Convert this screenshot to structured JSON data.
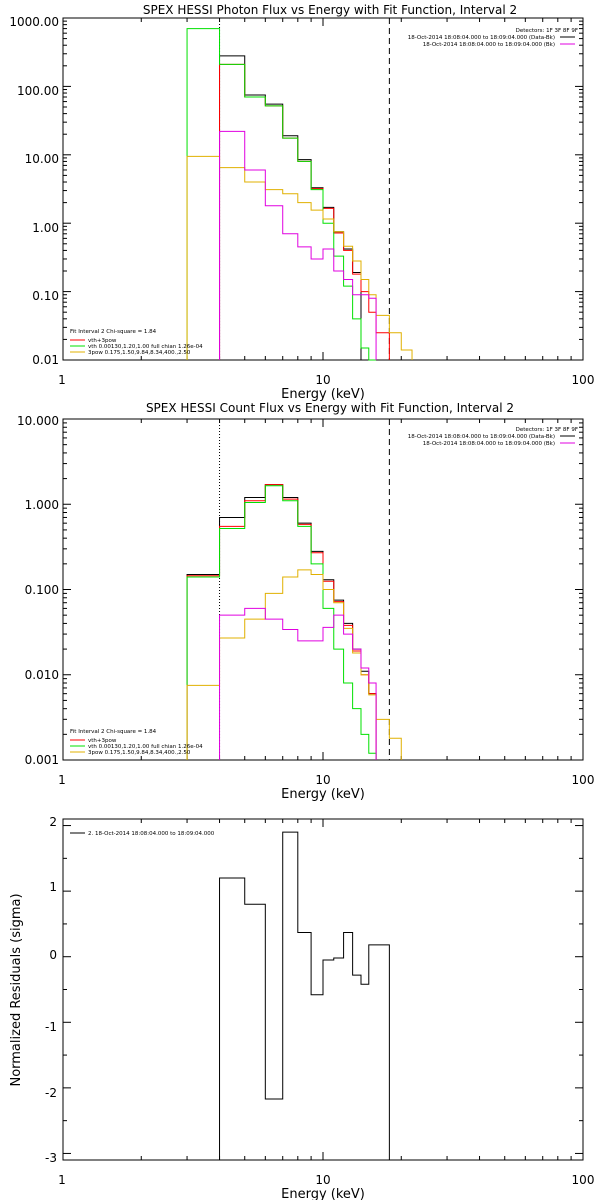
{
  "colors": {
    "black": "#000000",
    "red": "#ff0000",
    "green": "#00e000",
    "yellow": "#e0b000",
    "magenta": "#e000e0",
    "background": "#ffffff"
  },
  "chart_data": [
    {
      "type": "line",
      "title": "SPEX HESSI Photon Flux vs Energy with Fit Function, Interval 2",
      "xlabel": "Energy (keV)",
      "ylabel": "",
      "xscale": "log",
      "yscale": "log",
      "xlim": [
        1,
        100
      ],
      "ylim": [
        0.01,
        1000
      ],
      "xtick_labels": [
        "1",
        "10",
        "100"
      ],
      "ytick_labels": [
        "0.01",
        "0.10",
        "1.00",
        "10.00",
        "100.00",
        "1000.00"
      ],
      "vlines": {
        "dotted": 4.0,
        "dashed": 18.0
      },
      "info_text": [
        "Detectors: 1F 3F 8F 9F",
        "18-Oct-2014 18:08:04.000 to 18:09:04.000 (Data-Bk)",
        "18-Oct-2014 18:08:04.000 to 18:09:04.000 (Bk)"
      ],
      "fit_legend": {
        "header": "Fit Interval 2   Chi-square = 1.84",
        "entries": [
          "vth+3pow",
          "vth 0.00130,1.20,1.00  full chian 1.26e-04",
          "3pow 0.175,1.50,9.84,8.34,400.,2.50"
        ]
      },
      "bin_edges": [
        3.0,
        4.0,
        5.0,
        6.0,
        7.0,
        8.0,
        9.0,
        10.0,
        11.0,
        12.0,
        13.0,
        14.0,
        15.0,
        16.0,
        18.0,
        20.0,
        22.0
      ],
      "series": [
        {
          "color": "black",
          "values": [
            null,
            280,
            75,
            55,
            19,
            8.5,
            3.3,
            1.7,
            0.75,
            0.42,
            0.19,
            null,
            null,
            null,
            null,
            null
          ]
        },
        {
          "color": "red",
          "values": [
            null,
            210,
            70,
            52,
            17.5,
            8,
            3.2,
            1.65,
            0.72,
            0.4,
            0.18,
            0.1,
            0.05,
            0.025,
            null,
            null
          ]
        },
        {
          "color": "green",
          "values": [
            700,
            210,
            70,
            52,
            17.5,
            8,
            3.1,
            1.0,
            0.33,
            0.12,
            0.04,
            0.015,
            0.006,
            null,
            null,
            null
          ]
        },
        {
          "color": "yellow",
          "values": [
            9.5,
            6.5,
            4.0,
            3.1,
            2.7,
            2.0,
            1.55,
            1.15,
            0.75,
            0.46,
            0.28,
            0.15,
            0.09,
            0.045,
            0.025,
            0.014
          ]
        },
        {
          "color": "magenta",
          "values": [
            null,
            22,
            6.0,
            1.8,
            0.7,
            0.45,
            0.3,
            0.42,
            0.2,
            0.15,
            0.09,
            0.09,
            0.08,
            null,
            null,
            null
          ]
        }
      ]
    },
    {
      "type": "line",
      "title": "SPEX HESSI Count Flux vs Energy with Fit Function, Interval 2",
      "xlabel": "Energy (keV)",
      "ylabel": "",
      "xscale": "log",
      "yscale": "log",
      "xlim": [
        1,
        100
      ],
      "ylim": [
        0.001,
        10
      ],
      "xtick_labels": [
        "1",
        "10",
        "100"
      ],
      "ytick_labels": [
        "0.001",
        "0.010",
        "0.100",
        "1.000",
        "10.000"
      ],
      "vlines": {
        "dotted": 4.0,
        "dashed": 18.0
      },
      "info_text": [
        "Detectors: 1F 3F 8F 9F",
        "18-Oct-2014 18:08:04.000 to 18:09:04.000 (Data-Bk)",
        "18-Oct-2014 18:08:04.000 to 18:09:04.000 (Bk)"
      ],
      "fit_legend": {
        "header": "Fit Interval 2   Chi-square = 1.84",
        "entries": [
          "vth+3pow",
          "vth 0.00130,1.20,1.00  full chian 1.26e-04",
          "3pow 0.175,1.50,9.84,8.34,400.,2.50"
        ]
      },
      "bin_edges": [
        3.0,
        4.0,
        5.0,
        6.0,
        7.0,
        8.0,
        9.0,
        10.0,
        11.0,
        12.0,
        13.0,
        14.0,
        15.0,
        16.0,
        18.0,
        20.0,
        22.0
      ],
      "series": [
        {
          "color": "black",
          "values": [
            0.15,
            0.7,
            1.2,
            1.7,
            1.2,
            0.6,
            0.28,
            0.13,
            0.075,
            0.04,
            0.02,
            0.011,
            0.006,
            null,
            null,
            null
          ]
        },
        {
          "color": "red",
          "values": [
            0.145,
            0.55,
            1.1,
            1.7,
            1.15,
            0.58,
            0.27,
            0.125,
            0.072,
            0.038,
            0.019,
            0.01,
            0.006,
            null,
            null,
            null
          ]
        },
        {
          "color": "green",
          "values": [
            0.14,
            0.52,
            1.05,
            1.65,
            1.1,
            0.55,
            0.2,
            0.06,
            0.02,
            0.008,
            0.004,
            0.002,
            0.0012,
            null,
            null,
            null
          ]
        },
        {
          "color": "yellow",
          "values": [
            0.0075,
            0.027,
            0.045,
            0.09,
            0.14,
            0.17,
            0.15,
            0.1,
            0.07,
            0.035,
            0.018,
            0.01,
            0.0058,
            0.003,
            0.0018,
            null
          ]
        },
        {
          "color": "magenta",
          "values": [
            null,
            0.05,
            0.06,
            0.045,
            0.034,
            0.025,
            0.025,
            0.036,
            0.05,
            0.03,
            0.02,
            0.012,
            0.008,
            null,
            null,
            null
          ]
        }
      ]
    },
    {
      "type": "line",
      "title": "",
      "xlabel": "Energy (keV)",
      "ylabel": "Normalized Residuals (sigma)",
      "xscale": "log",
      "yscale": "linear",
      "xlim": [
        1,
        100
      ],
      "ylim": [
        -3.1,
        2.1
      ],
      "xtick_labels": [
        "1",
        "10",
        "100"
      ],
      "ytick_labels": [
        "-3",
        "-2",
        "-1",
        "0",
        "1",
        "2"
      ],
      "legend": "2. 18-Oct-2014 18:08:04.000 to 18:09:04.000",
      "bin_edges": [
        4.0,
        5.0,
        6.0,
        7.0,
        8.0,
        9.0,
        10.0,
        11.0,
        12.0,
        13.0,
        14.0,
        15.0,
        16.0,
        18.0
      ],
      "series": [
        {
          "color": "black",
          "values": [
            1.2,
            0.8,
            -2.17,
            1.9,
            0.37,
            -0.58,
            -0.05,
            -0.02,
            0.37,
            -0.28,
            -0.42,
            0.18,
            0.18
          ]
        }
      ]
    }
  ]
}
